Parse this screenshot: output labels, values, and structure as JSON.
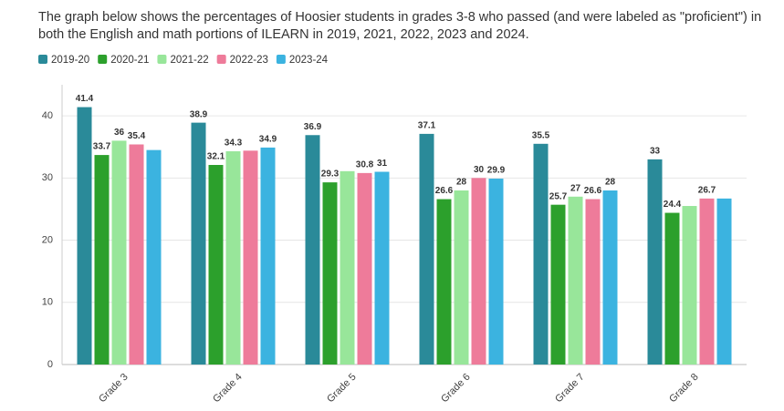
{
  "chart_data": {
    "type": "bar",
    "subtitle": [
      "The graph below shows the percentages of Hoosier students in grades 3-8 who passed (and were labeled as \"proficient\") in",
      "both the English and math portions of ILEARN in 2019, 2021, 2022, 2023 and 2024."
    ],
    "categories": [
      "Grade 3",
      "Grade 4",
      "Grade 5",
      "Grade 6",
      "Grade 7",
      "Grade 8"
    ],
    "series": [
      {
        "name": "2019-20",
        "color": "#2a8a99",
        "values": [
          41.4,
          38.9,
          36.9,
          37.1,
          35.5,
          33
        ],
        "value_labels": [
          "41.4",
          "38.9",
          "36.9",
          "37.1",
          "35.5",
          "33"
        ]
      },
      {
        "name": "2020-21",
        "color": "#2ca02c",
        "values": [
          33.7,
          32.1,
          29.3,
          26.6,
          25.7,
          24.4
        ],
        "value_labels": [
          "33.7",
          "32.1",
          "29.3",
          "26.6",
          "25.7",
          "24.4"
        ]
      },
      {
        "name": "2021-22",
        "color": "#98e69a",
        "values": [
          36,
          34.3,
          31.1,
          28,
          27,
          25.5
        ],
        "value_labels": [
          "36",
          "34.3",
          null,
          "28",
          "27",
          null
        ]
      },
      {
        "name": "2022-23",
        "color": "#ee7b9a",
        "values": [
          35.4,
          34.4,
          30.8,
          30,
          26.6,
          26.7
        ],
        "value_labels": [
          "35.4",
          null,
          "30.8",
          "30",
          "26.6",
          "26.7"
        ]
      },
      {
        "name": "2023-24",
        "color": "#3bb3e0",
        "values": [
          34.5,
          34.9,
          31,
          29.9,
          28,
          26.7
        ],
        "value_labels": [
          null,
          "34.9",
          "31",
          "29.9",
          "28",
          null
        ]
      }
    ],
    "ylim": [
      0,
      45
    ],
    "yticks": [
      0,
      10,
      20,
      30,
      40
    ],
    "grid": true
  }
}
